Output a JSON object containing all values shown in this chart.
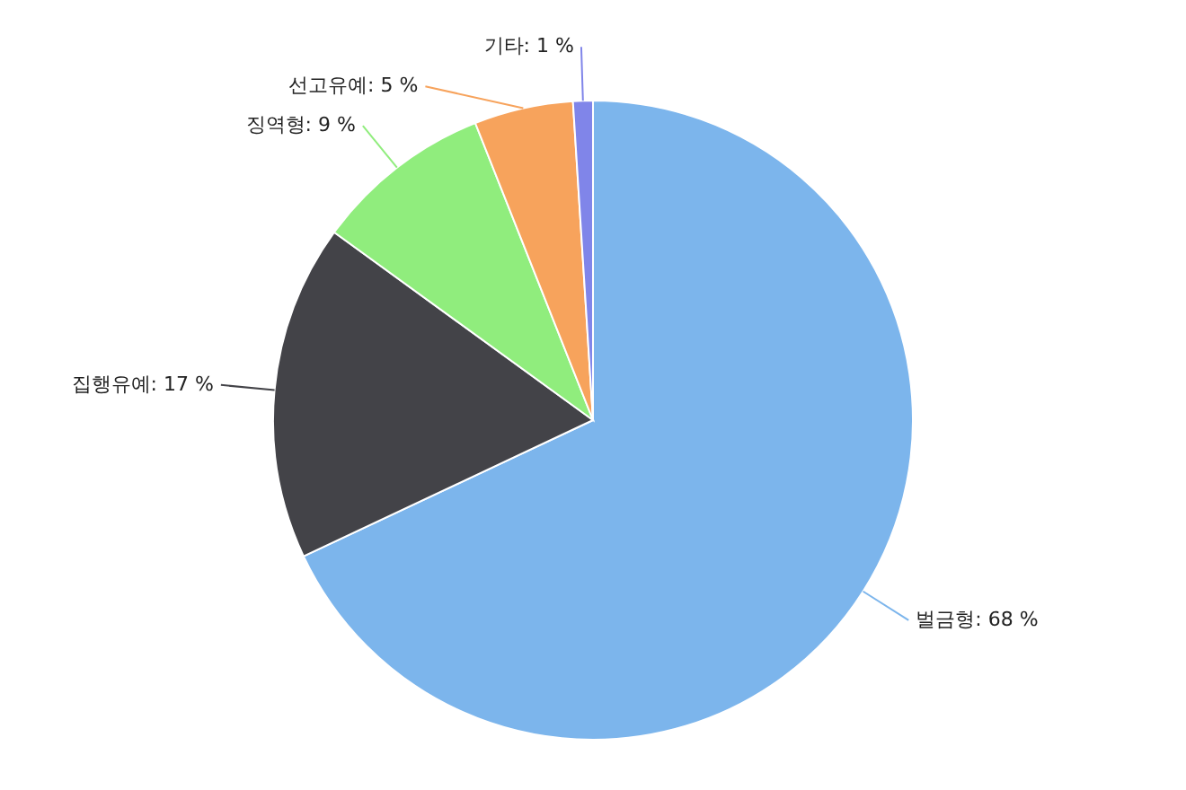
{
  "chart_data": {
    "type": "pie",
    "categories": [
      "벌금형",
      "집행유예",
      "징역형",
      "선고유예",
      "기타"
    ],
    "values": [
      68,
      17,
      9,
      5,
      1
    ],
    "colors": [
      "#7cb5ec",
      "#434348",
      "#90ed7d",
      "#f7a35c",
      "#8085e9"
    ],
    "value_labels": [
      "68 %",
      "17 %",
      "9 %",
      "5 %",
      "1 %"
    ]
  }
}
